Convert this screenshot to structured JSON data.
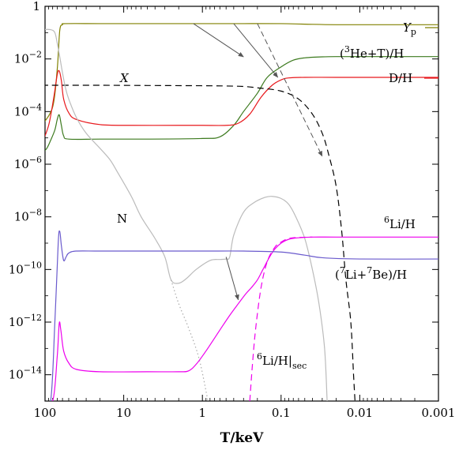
{
  "chart_data": {
    "type": "line",
    "xlabel": "T/keV",
    "ylabel": "",
    "xscale": "log",
    "yscale": "log",
    "x_reversed": true,
    "xlim": [
      100,
      0.001
    ],
    "ylim": [
      1e-15,
      1
    ],
    "x_ticks": [
      {
        "value": 100,
        "label": "100"
      },
      {
        "value": 10,
        "label": "10"
      },
      {
        "value": 1,
        "label": "1"
      },
      {
        "value": 0.1,
        "label": "0.1"
      },
      {
        "value": 0.01,
        "label": "0.01"
      },
      {
        "value": 0.001,
        "label": "0.001"
      }
    ],
    "y_ticks": [
      {
        "value": 1,
        "label": "1"
      },
      {
        "value": 0.01,
        "label": "10",
        "exp": "−2"
      },
      {
        "value": 0.0001,
        "label": "10",
        "exp": "−4"
      },
      {
        "value": 1e-06,
        "label": "10",
        "exp": "−6"
      },
      {
        "value": 1e-08,
        "label": "10",
        "exp": "−8"
      },
      {
        "value": 1e-10,
        "label": "10",
        "exp": "−10"
      },
      {
        "value": 1e-12,
        "label": "10",
        "exp": "−12"
      },
      {
        "value": 1e-14,
        "label": "10",
        "exp": "−14"
      }
    ],
    "grid": false,
    "series": [
      {
        "id": "Yp",
        "color": "#808000",
        "dash": "",
        "points": [
          [
            110,
            3e-05
          ],
          [
            80,
            0.00015
          ],
          [
            70,
            0.004
          ],
          [
            65,
            0.12
          ],
          [
            60,
            0.2
          ],
          [
            55,
            0.22
          ],
          [
            20,
            0.22
          ],
          [
            5,
            0.22
          ],
          [
            1,
            0.22
          ],
          [
            0.3,
            0.22
          ],
          [
            0.1,
            0.22
          ],
          [
            0.05,
            0.21
          ],
          [
            0.02,
            0.2
          ],
          [
            0.005,
            0.2
          ],
          [
            0.001,
            0.2
          ]
        ]
      },
      {
        "id": "He3T",
        "color": "#3c7a1e",
        "dash": "",
        "points": [
          [
            110,
            2.5e-06
          ],
          [
            95,
            4e-06
          ],
          [
            85,
            8e-06
          ],
          [
            75,
            2e-05
          ],
          [
            70,
            5e-05
          ],
          [
            66,
            7.5e-05
          ],
          [
            62,
            3e-05
          ],
          [
            58,
            1.2e-05
          ],
          [
            50,
            9e-06
          ],
          [
            20,
            9e-06
          ],
          [
            5,
            9e-06
          ],
          [
            1,
            9.5e-06
          ],
          [
            0.6,
            1.1e-05
          ],
          [
            0.4,
            3e-05
          ],
          [
            0.3,
            0.0001
          ],
          [
            0.2,
            0.0005
          ],
          [
            0.15,
            0.002
          ],
          [
            0.1,
            0.005
          ],
          [
            0.07,
            0.009
          ],
          [
            0.05,
            0.011
          ],
          [
            0.03,
            0.012
          ],
          [
            0.02,
            0.0123
          ],
          [
            0.01,
            0.0123
          ],
          [
            0.003,
            0.0123
          ],
          [
            0.001,
            0.0123
          ]
        ]
      },
      {
        "id": "DH",
        "color": "#e8181c",
        "dash": "",
        "points": [
          [
            110,
            6e-06
          ],
          [
            90,
            3e-05
          ],
          [
            78,
            0.0003
          ],
          [
            70,
            0.0025
          ],
          [
            66,
            0.0035
          ],
          [
            62,
            0.0015
          ],
          [
            58,
            0.0003
          ],
          [
            50,
            9e-05
          ],
          [
            40,
            5e-05
          ],
          [
            20,
            3.2e-05
          ],
          [
            8,
            3e-05
          ],
          [
            2,
            3e-05
          ],
          [
            1,
            3e-05
          ],
          [
            0.5,
            3e-05
          ],
          [
            0.35,
            3.6e-05
          ],
          [
            0.25,
            8e-05
          ],
          [
            0.18,
            0.00035
          ],
          [
            0.13,
            0.001
          ],
          [
            0.1,
            0.0016
          ],
          [
            0.08,
            0.0019
          ],
          [
            0.05,
            0.002
          ],
          [
            0.02,
            0.002
          ],
          [
            0.003,
            0.002
          ],
          [
            0.001,
            0.002
          ]
        ]
      },
      {
        "id": "X",
        "color": "#000000",
        "dash": "8 5",
        "points": [
          [
            110,
            0.001
          ],
          [
            60,
            0.001
          ],
          [
            20,
            0.001
          ],
          [
            5,
            0.00098
          ],
          [
            1,
            0.00096
          ],
          [
            0.5,
            0.00094
          ],
          [
            0.3,
            0.0009
          ],
          [
            0.2,
            0.0008
          ],
          [
            0.1,
            0.0006
          ],
          [
            0.06,
            0.0003
          ],
          [
            0.04,
            8e-05
          ],
          [
            0.03,
            1.5e-05
          ],
          [
            0.025,
            2.5e-06
          ],
          [
            0.02,
            1.5e-07
          ],
          [
            0.017,
            3e-09
          ],
          [
            0.015,
            4e-11
          ],
          [
            0.013,
            1e-12
          ],
          [
            0.012,
            1e-14
          ],
          [
            0.0115,
            1e-15
          ]
        ]
      },
      {
        "id": "N",
        "color": "#bbbbbb",
        "dash": "",
        "points": [
          [
            110,
            0.13
          ],
          [
            85,
            0.13
          ],
          [
            75,
            0.1
          ],
          [
            70,
            0.04
          ],
          [
            65,
            0.012
          ],
          [
            60,
            0.003
          ],
          [
            55,
            0.0008
          ],
          [
            50,
            0.0003
          ],
          [
            40,
            6e-05
          ],
          [
            30,
            1.5e-05
          ],
          [
            20,
            4e-06
          ],
          [
            15,
            1.5e-06
          ],
          [
            12,
            5e-07
          ],
          [
            8,
            6e-08
          ],
          [
            6,
            1e-08
          ],
          [
            4,
            1.5e-09
          ],
          [
            3,
            3e-10
          ],
          [
            2.5,
            4e-11
          ],
          [
            2,
            3e-11
          ],
          [
            1.6,
            4.5e-11
          ],
          [
            1.2,
            1e-10
          ],
          [
            0.8,
            2.2e-10
          ],
          [
            0.6,
            2.4e-10
          ],
          [
            0.5,
            2.5e-10
          ],
          [
            0.45,
            3e-10
          ],
          [
            0.4,
            2e-09
          ],
          [
            0.3,
            1.5e-08
          ],
          [
            0.22,
            3.5e-08
          ],
          [
            0.16,
            5.5e-08
          ],
          [
            0.13,
            6e-08
          ],
          [
            0.1,
            5e-08
          ],
          [
            0.08,
            3e-08
          ],
          [
            0.065,
            1e-08
          ],
          [
            0.05,
            1.5e-09
          ],
          [
            0.04,
            1e-10
          ],
          [
            0.033,
            5e-12
          ],
          [
            0.028,
            1e-13
          ],
          [
            0.026,
            1e-15
          ]
        ]
      },
      {
        "id": "Ndot",
        "color": "#aaaaaa",
        "dash": "1.5 3",
        "points": [
          [
            2.5,
            4e-11
          ],
          [
            2,
            5e-12
          ],
          [
            1.5,
            6e-13
          ],
          [
            1.1,
            4e-14
          ],
          [
            0.85,
            1e-15
          ]
        ]
      },
      {
        "id": "Li6",
        "color": "#ee00ee",
        "dash": "",
        "points": [
          [
            110,
            1e-15
          ],
          [
            80,
            1e-15
          ],
          [
            70,
            5e-14
          ],
          [
            66,
            9e-13
          ],
          [
            63,
            5e-13
          ],
          [
            58,
            8e-14
          ],
          [
            50,
            2.8e-14
          ],
          [
            40,
            1.6e-14
          ],
          [
            20,
            1.3e-14
          ],
          [
            5,
            1.3e-14
          ],
          [
            2,
            1.3e-14
          ],
          [
            1.5,
            1.4e-14
          ],
          [
            1.2,
            2.5e-14
          ],
          [
            0.9,
            8e-14
          ],
          [
            0.6,
            5e-13
          ],
          [
            0.45,
            1.8e-12
          ],
          [
            0.35,
            5e-12
          ],
          [
            0.28,
            1.2e-11
          ],
          [
            0.24,
            2e-11
          ],
          [
            0.2,
            4e-11
          ],
          [
            0.17,
            1e-10
          ],
          [
            0.14,
            3e-10
          ],
          [
            0.12,
            6e-10
          ],
          [
            0.1,
            1e-09
          ],
          [
            0.08,
            1.4e-09
          ],
          [
            0.06,
            1.6e-09
          ],
          [
            0.04,
            1.7e-09
          ],
          [
            0.02,
            1.7e-09
          ],
          [
            0.005,
            1.7e-09
          ],
          [
            0.001,
            1.7e-09
          ]
        ]
      },
      {
        "id": "Li6sec",
        "color": "#ee00ee",
        "dash": "8 5",
        "points": [
          [
            0.25,
            1e-15
          ],
          [
            0.23,
            3e-14
          ],
          [
            0.21,
            6e-13
          ],
          [
            0.18,
            2e-11
          ],
          [
            0.15,
            2e-10
          ],
          [
            0.12,
            7e-10
          ],
          [
            0.1,
            1.1e-09
          ],
          [
            0.08,
            1.5e-09
          ],
          [
            0.06,
            1.65e-09
          ],
          [
            0.04,
            1.7e-09
          ]
        ]
      },
      {
        "id": "Li7Be7",
        "color": "#6a5acd",
        "dash": "",
        "points": [
          [
            110,
            1e-15
          ],
          [
            85,
            1e-15
          ],
          [
            75,
            1e-12
          ],
          [
            68,
            1e-09
          ],
          [
            65,
            2.8e-09
          ],
          [
            62,
            8e-10
          ],
          [
            58,
            2.2e-10
          ],
          [
            54,
            3e-10
          ],
          [
            50,
            4.2e-10
          ],
          [
            40,
            5e-10
          ],
          [
            20,
            5e-10
          ],
          [
            5,
            5e-10
          ],
          [
            1,
            5e-10
          ],
          [
            0.3,
            5e-10
          ],
          [
            0.1,
            4.6e-10
          ],
          [
            0.05,
            3.5e-10
          ],
          [
            0.03,
            2.8e-10
          ],
          [
            0.01,
            2.5e-10
          ],
          [
            0.001,
            2.5e-10
          ]
        ]
      }
    ],
    "labels": {
      "Yp": {
        "text": "Y",
        "sub": "p"
      },
      "He3T": {
        "pre": "(",
        "sup1": "3",
        "mid": "He+T)/H"
      },
      "DH": {
        "text": "D/H"
      },
      "X": {
        "text": "X"
      },
      "N": {
        "text": "N"
      },
      "Li6": {
        "sup1": "6",
        "text": "Li/H"
      },
      "Li7Be7": {
        "pre": "(",
        "sup1": "7",
        "mid": "Li+",
        "sup2": "7",
        "post": "Be)/H"
      },
      "Li6sec": {
        "sup1": "6",
        "text": "Li/H|",
        "sub": "sec"
      }
    },
    "arrows": [
      {
        "from": [
          1.3,
          0.22
        ],
        "to": [
          0.3,
          0.012
        ],
        "dash": ""
      },
      {
        "from": [
          0.4,
          0.22
        ],
        "to": [
          0.11,
          0.002
        ],
        "dash": ""
      },
      {
        "from": [
          0.2,
          0.22
        ],
        "to": [
          0.03,
          2e-06
        ],
        "dash": "7 4"
      },
      {
        "from": [
          0.5,
          3e-10
        ],
        "to": [
          0.35,
          7e-12
        ],
        "dash": ""
      }
    ]
  }
}
